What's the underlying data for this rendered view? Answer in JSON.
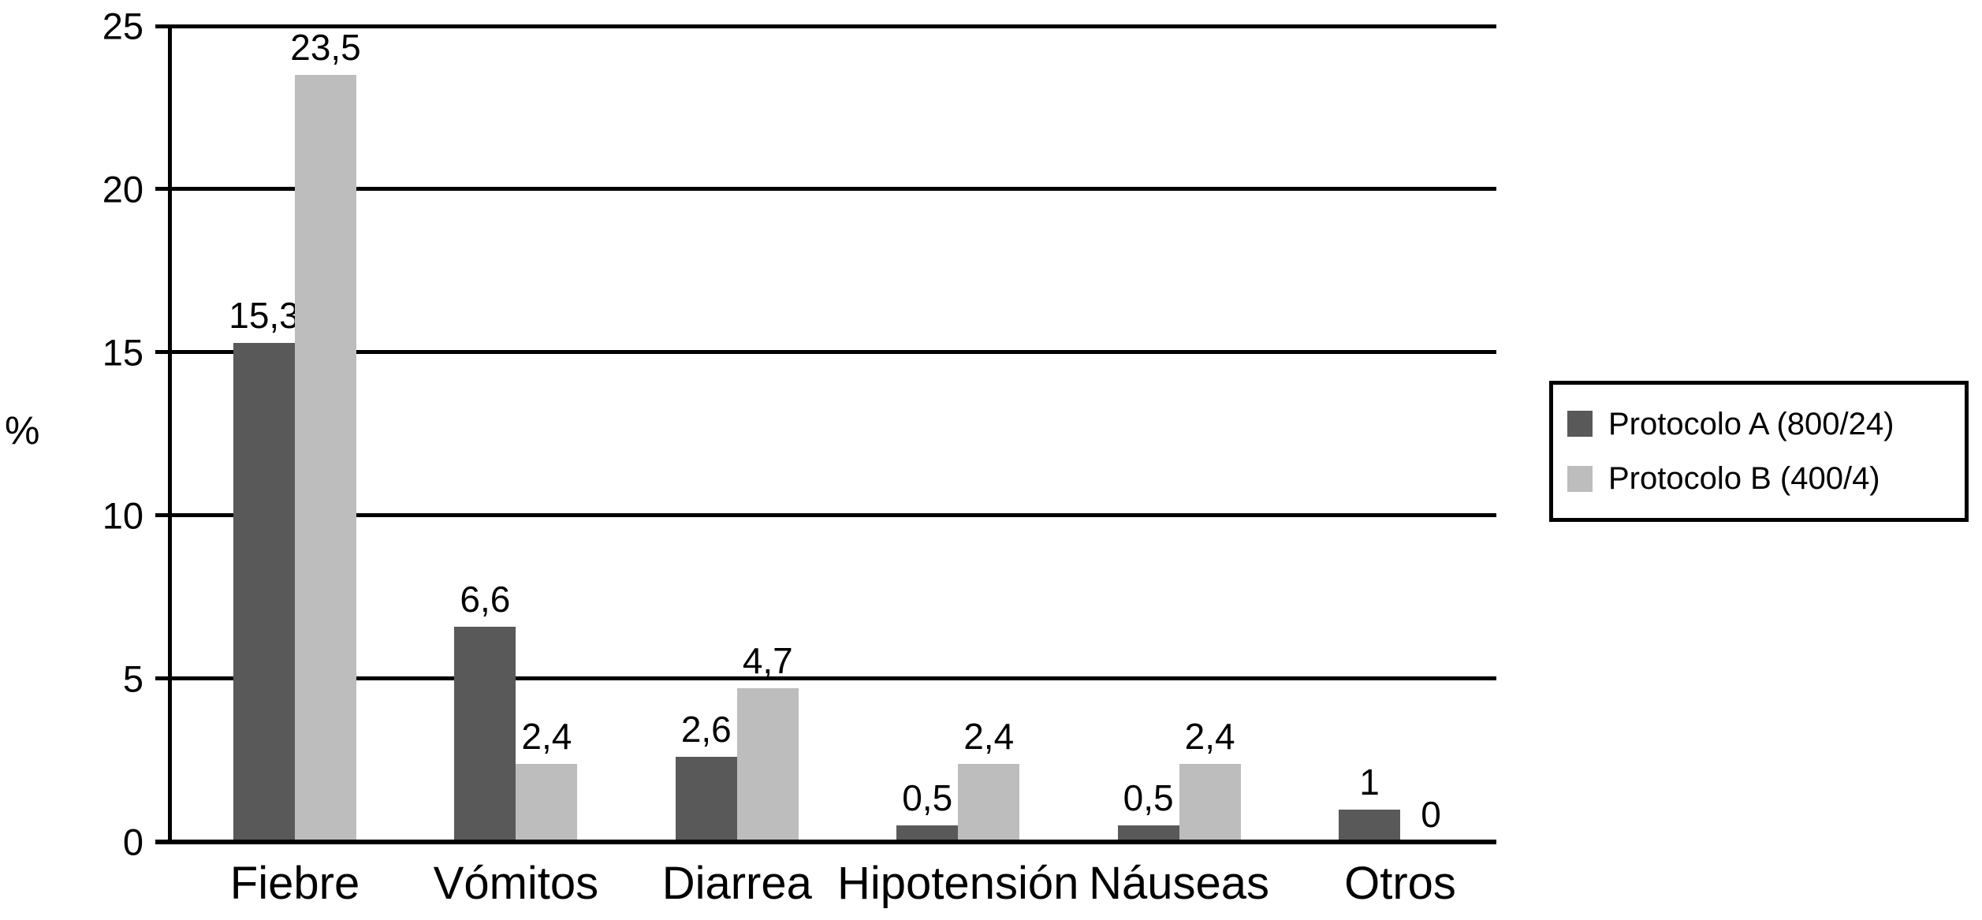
{
  "chart_data": {
    "type": "bar",
    "title": "",
    "ylabel": "%",
    "xlabel": "",
    "ylim": [
      0,
      25
    ],
    "yticks": [
      0,
      5,
      10,
      15,
      20,
      25
    ],
    "grid": true,
    "legend_position": "right",
    "legend_border": true,
    "decimal_separator": ",",
    "categories": [
      "Fiebre",
      "Vómitos",
      "Diarrea",
      "Hipotensión",
      "Náuseas",
      "Otros"
    ],
    "series": [
      {
        "name": "Protocolo A (800/24)",
        "color": "#595959",
        "values": [
          15.3,
          6.6,
          2.6,
          0.5,
          0.5,
          1
        ],
        "value_labels": [
          "15,3",
          "6,6",
          "2,6",
          "0,5",
          "0,5",
          "1"
        ]
      },
      {
        "name": "Protocolo B (400/4)",
        "color": "#bdbdbd",
        "values": [
          23.5,
          2.4,
          4.7,
          2.4,
          2.4,
          0
        ],
        "value_labels": [
          "23,5",
          "2,4",
          "4,7",
          "2,4",
          "2,4",
          "0"
        ]
      }
    ]
  },
  "colors": {
    "axis": "#000000",
    "text": "#000000",
    "background": "#ffffff"
  }
}
